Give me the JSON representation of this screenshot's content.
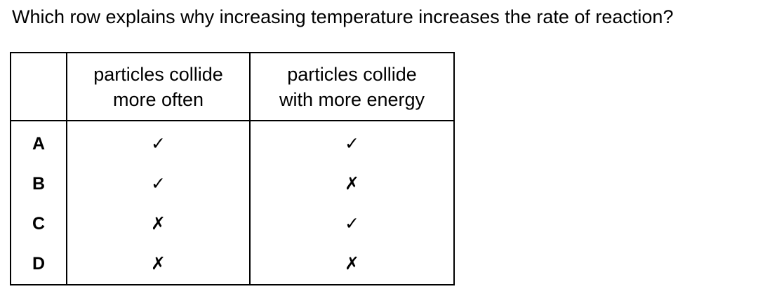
{
  "question": "Which row explains why increasing temperature increases the rate of reaction?",
  "table": {
    "headers": {
      "often": [
        "particles collide",
        "more often"
      ],
      "energy": [
        "particles collide",
        "with more energy"
      ]
    },
    "rows": [
      {
        "letter": "A",
        "often": "✓",
        "energy": "✓"
      },
      {
        "letter": "B",
        "often": "✓",
        "energy": "✗"
      },
      {
        "letter": "C",
        "often": "✗",
        "energy": "✓"
      },
      {
        "letter": "D",
        "often": "✗",
        "energy": "✗"
      }
    ]
  }
}
